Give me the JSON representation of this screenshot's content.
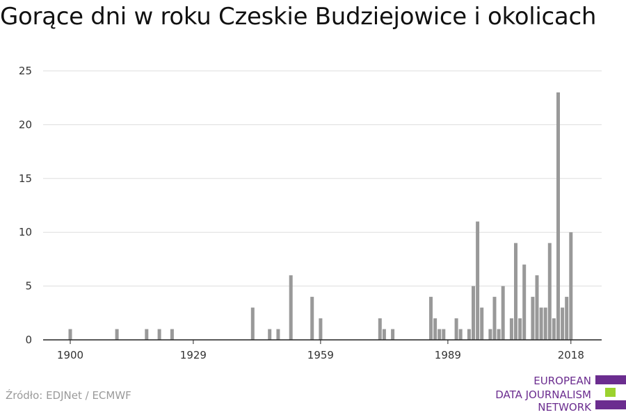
{
  "chart_data": {
    "type": "bar",
    "title": "Gorące dni w roku Czeskie Budziejowice i okolicach",
    "xlabel": "",
    "ylabel": "",
    "x_range": [
      1899,
      2019
    ],
    "ylim": [
      0,
      25
    ],
    "yticks": [
      0,
      5,
      10,
      15,
      20,
      25
    ],
    "xticks": [
      1900,
      1929,
      1959,
      1989,
      2018
    ],
    "grid": true,
    "bar_color": "#999999",
    "x": [
      1900,
      1911,
      1918,
      1921,
      1924,
      1943,
      1947,
      1949,
      1952,
      1957,
      1959,
      1973,
      1974,
      1976,
      1985,
      1986,
      1987,
      1988,
      1991,
      1992,
      1994,
      1995,
      1996,
      1997,
      1999,
      2000,
      2001,
      2002,
      2004,
      2005,
      2006,
      2007,
      2009,
      2010,
      2011,
      2012,
      2013,
      2014,
      2015,
      2016,
      2017,
      2018
    ],
    "values": [
      1,
      1,
      1,
      1,
      1,
      3,
      1,
      1,
      6,
      4,
      2,
      2,
      1,
      1,
      4,
      2,
      1,
      1,
      2,
      1,
      1,
      5,
      11,
      3,
      1,
      4,
      1,
      5,
      2,
      9,
      2,
      7,
      4,
      6,
      3,
      3,
      9,
      2,
      23,
      3,
      4,
      10
    ]
  },
  "source": "Źródło: EDJNet / ECMWF",
  "logo": {
    "lines": [
      "EUROPEAN",
      "DATA JOURNALISM",
      "NETWORK"
    ],
    "colors": {
      "purple": "#6b2d8f",
      "green": "#9bd22e"
    }
  }
}
